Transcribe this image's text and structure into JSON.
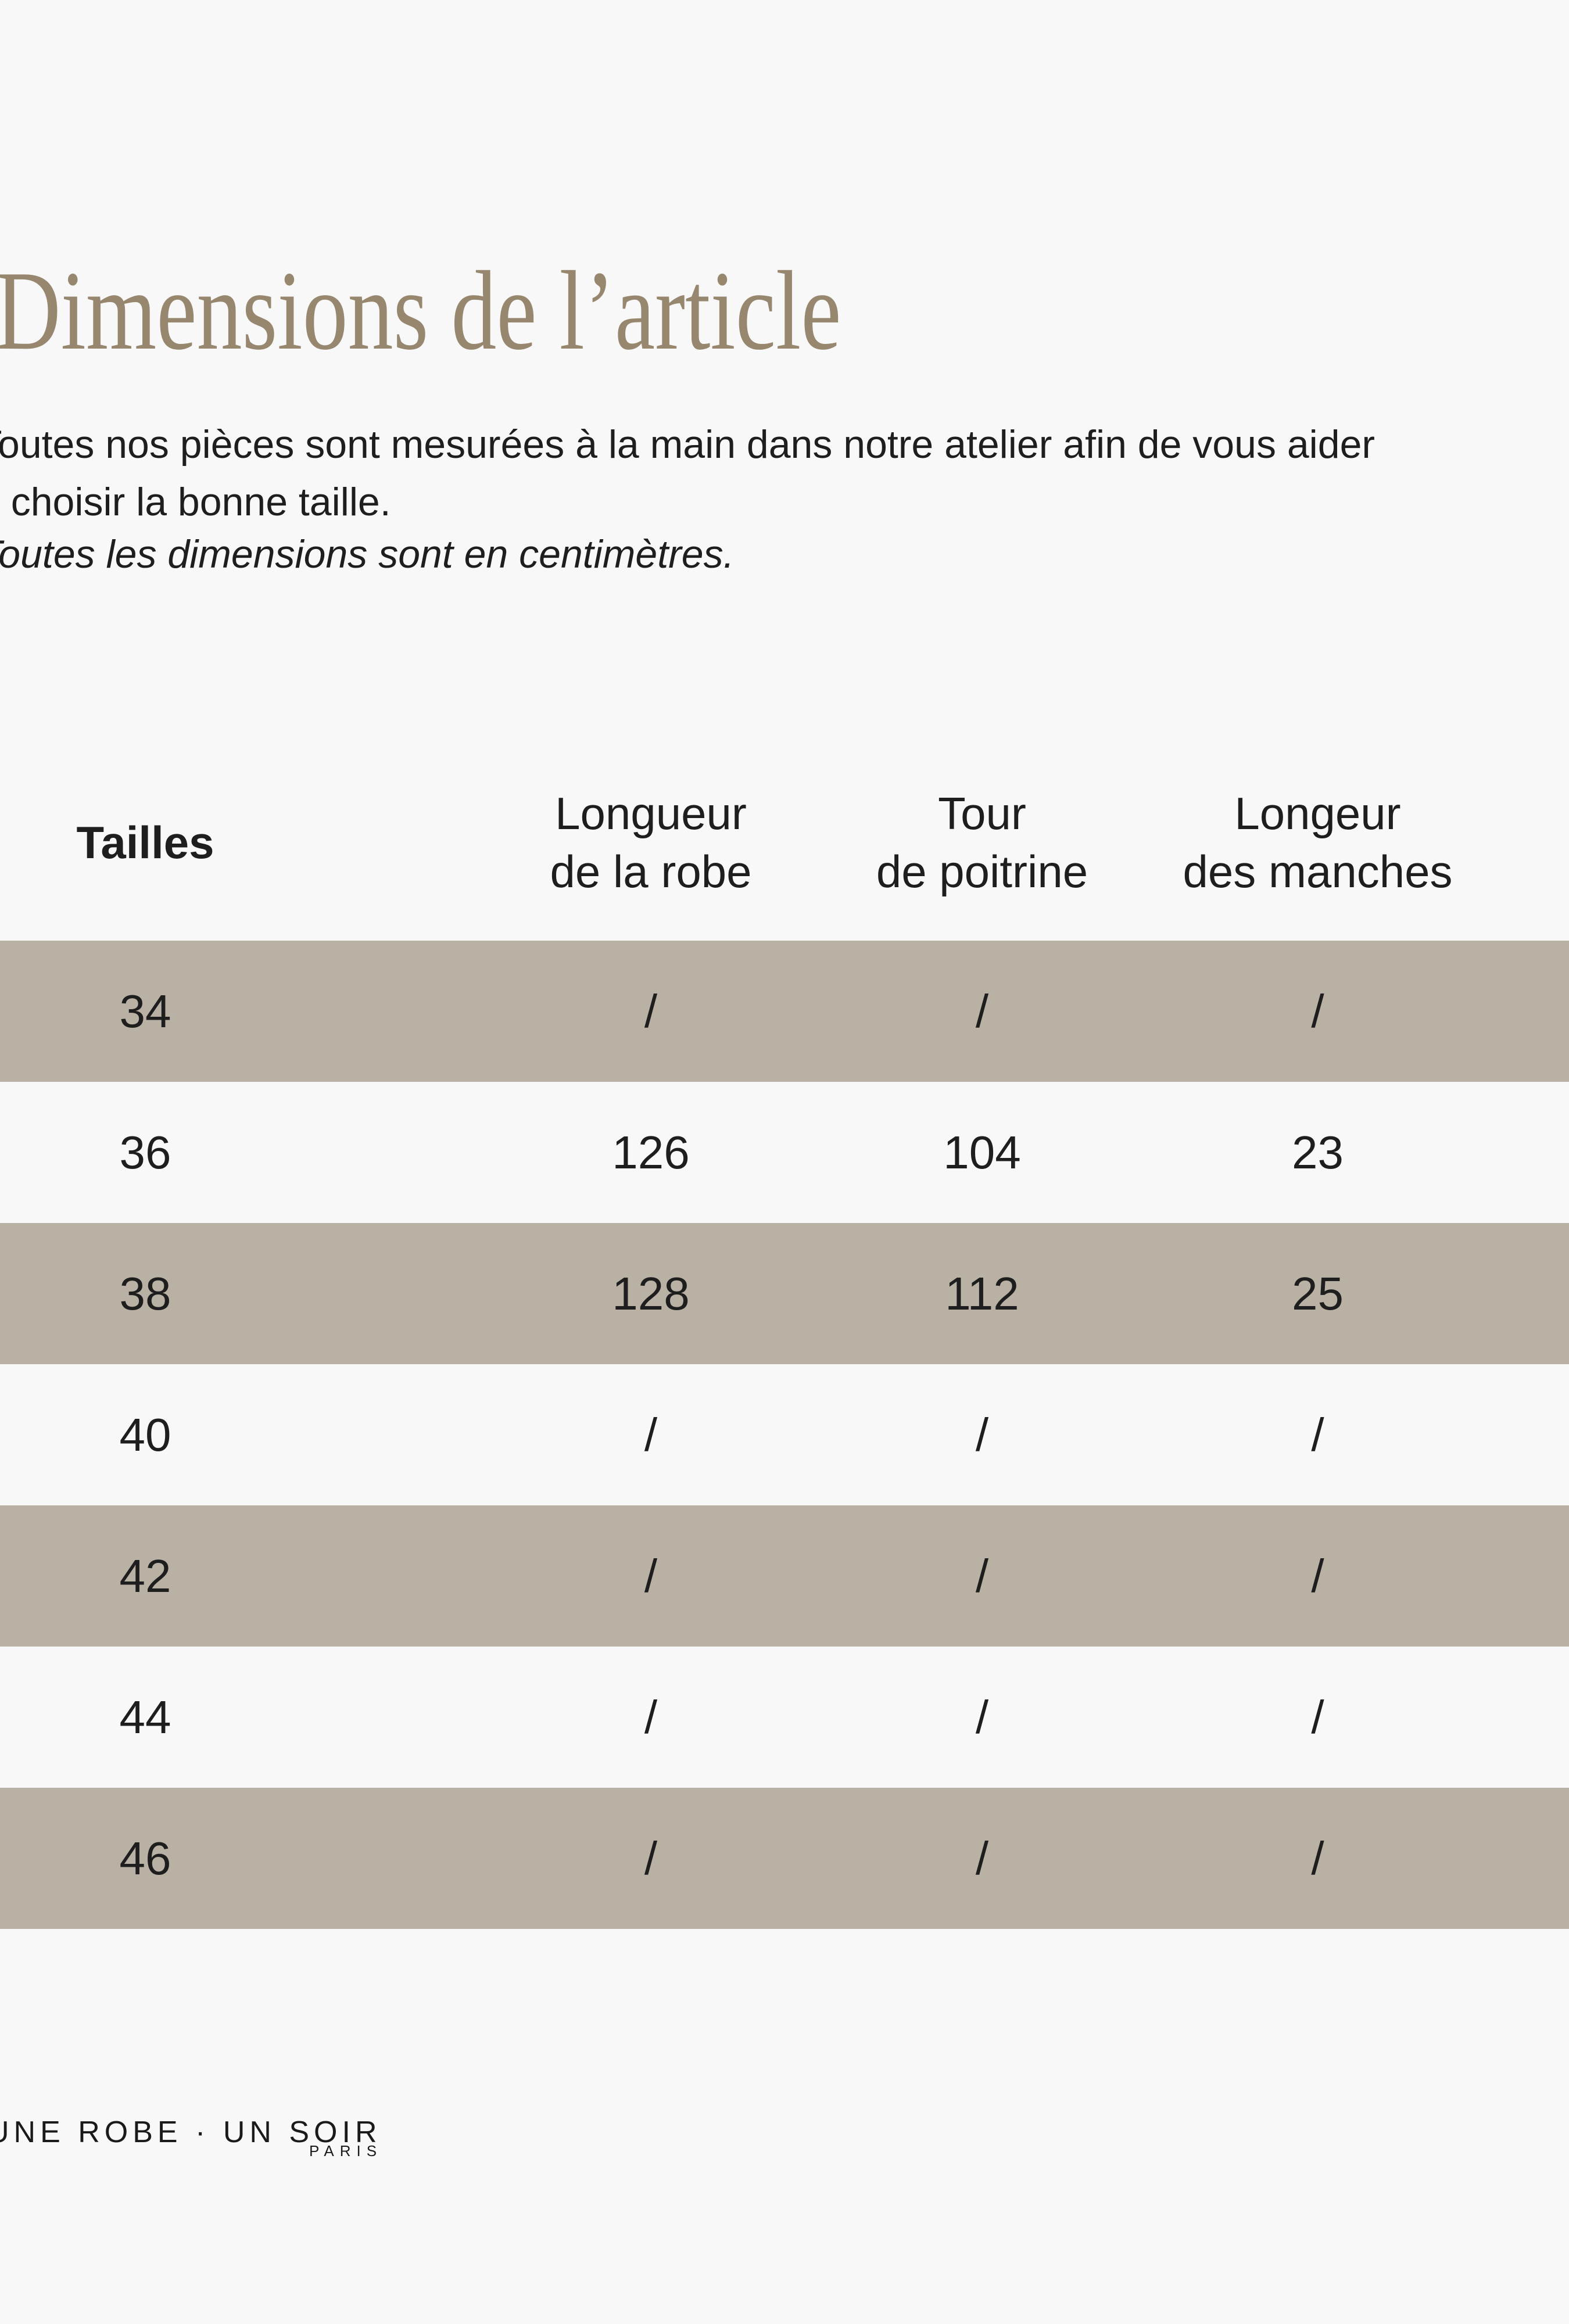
{
  "page": {
    "background_color": "#f8f8f8",
    "text_color": "#1e1e1e"
  },
  "title": {
    "text": "Dimensions de l’article",
    "color": "#97876f"
  },
  "intro": {
    "line1": "Toutes nos pièces sont mesurées à la main dans notre atelier afin de vous aider",
    "line2": "à choisir la bonne taille.",
    "note": "Toutes les dimensions sont en centimètres."
  },
  "table": {
    "row_highlight_color": "#b9b1a4",
    "columns": [
      {
        "id": "tailles",
        "label": "Tailles"
      },
      {
        "id": "longueur_robe",
        "label_line1": "Longueur",
        "label_line2": "de la robe"
      },
      {
        "id": "tour_poitrine",
        "label_line1": "Tour",
        "label_line2": "de poitrine"
      },
      {
        "id": "longeur_manches",
        "label_line1": "Longeur",
        "label_line2": "des manches"
      }
    ],
    "rows": [
      {
        "taille": "34",
        "longueur_robe": "/",
        "tour_poitrine": "/",
        "longeur_manches": "/",
        "highlighted": true
      },
      {
        "taille": "36",
        "longueur_robe": "126",
        "tour_poitrine": "104",
        "longeur_manches": "23",
        "highlighted": false
      },
      {
        "taille": "38",
        "longueur_robe": "128",
        "tour_poitrine": "112",
        "longeur_manches": "25",
        "highlighted": true
      },
      {
        "taille": "40",
        "longueur_robe": "/",
        "tour_poitrine": "/",
        "longeur_manches": "/",
        "highlighted": false
      },
      {
        "taille": "42",
        "longueur_robe": "/",
        "tour_poitrine": "/",
        "longeur_manches": "/",
        "highlighted": true
      },
      {
        "taille": "44",
        "longueur_robe": "/",
        "tour_poitrine": "/",
        "longeur_manches": "/",
        "highlighted": false
      },
      {
        "taille": "46",
        "longueur_robe": "/",
        "tour_poitrine": "/",
        "longeur_manches": "/",
        "highlighted": true
      }
    ]
  },
  "footer": {
    "brand": "UNE ROBE · UN SOIR",
    "brand_sub": "PARIS",
    "brand_color": "#1a1a1a"
  }
}
